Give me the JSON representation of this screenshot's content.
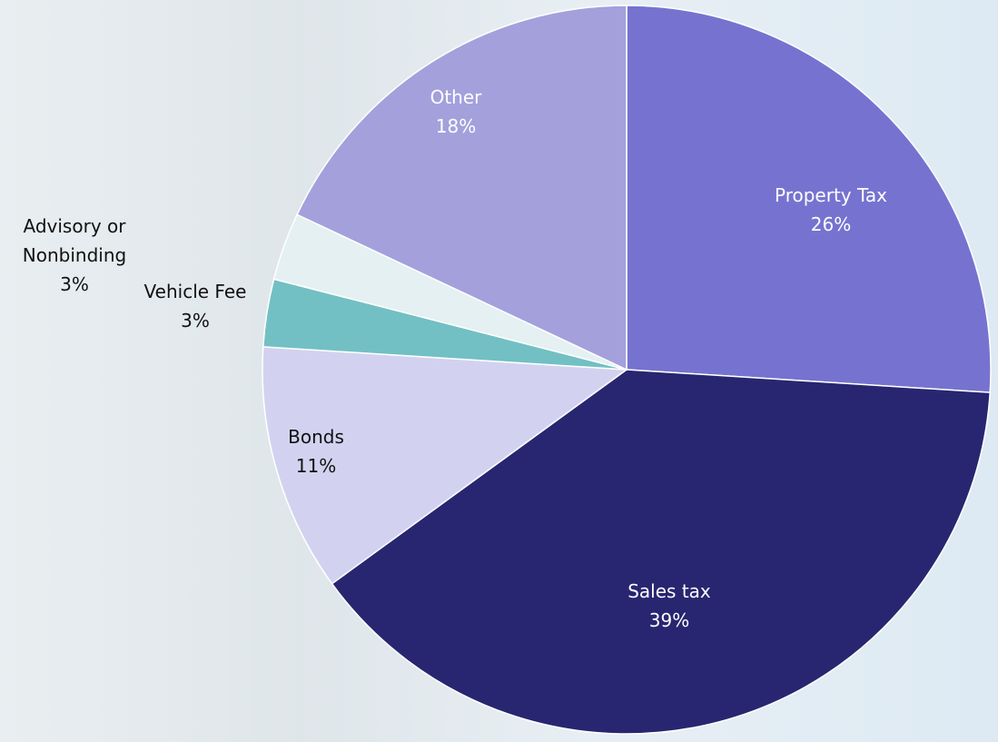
{
  "chart_data": {
    "type": "pie",
    "categories": [
      "Property Tax",
      "Sales tax",
      "Bonds",
      "Vehicle Fee",
      "Advisory or Nonbinding",
      "Other"
    ],
    "values": [
      26,
      39,
      11,
      3,
      3,
      18
    ],
    "value_labels": [
      "26%",
      "39%",
      "11%",
      "3%",
      "3%",
      "18%"
    ],
    "colors": [
      "#7673d0",
      "#282670",
      "#d2d2f0",
      "#72c0c4",
      "#e4f0f2",
      "#a3a0dc"
    ]
  }
}
